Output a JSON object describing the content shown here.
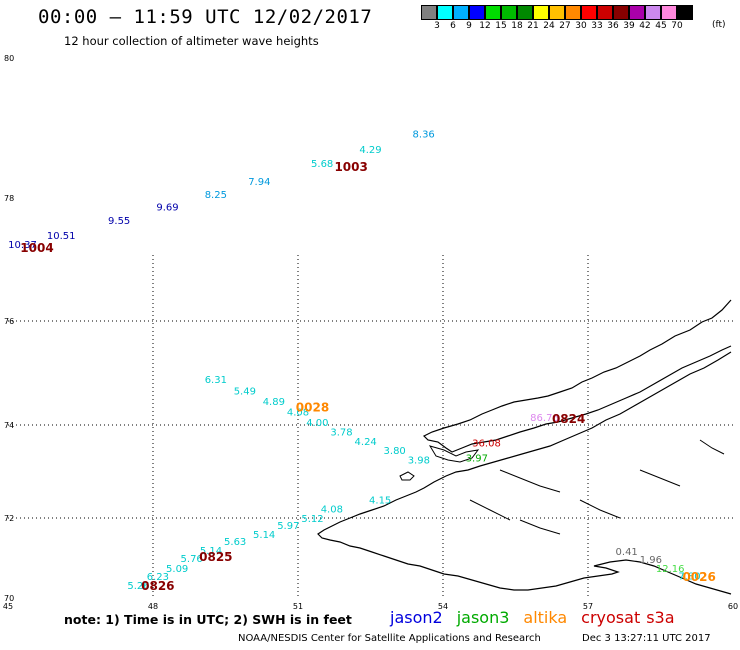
{
  "header": {
    "title": "00:00 – 11:59 UTC 12/02/2017",
    "subtitle": "12 hour collection of altimeter wave heights"
  },
  "legend": {
    "colors": [
      "#808080",
      "#00ffff",
      "#00b0ff",
      "#0000ff",
      "#00dd00",
      "#00bb00",
      "#008800",
      "#ffff00",
      "#ffc000",
      "#ff8800",
      "#ff0000",
      "#cc0000",
      "#880000",
      "#aa00aa",
      "#cc88ee",
      "#ff88dd",
      "#000000"
    ],
    "labels": [
      "3",
      "6",
      "9",
      "12",
      "15",
      "18",
      "21",
      "24",
      "27",
      "30",
      "33",
      "36",
      "39",
      "42",
      "45",
      "70"
    ],
    "unit": "(ft)"
  },
  "axes": {
    "lon_ticks": [
      "45",
      "48",
      "51",
      "54",
      "57",
      "60"
    ],
    "lat_ticks": [
      "70",
      "72",
      "74",
      "76",
      "78",
      "80"
    ]
  },
  "map": {
    "swh_points": [
      {
        "text": "10.37",
        "lon": 45.3,
        "lat": 77.25,
        "color": "#0000aa"
      },
      {
        "text": "10.51",
        "lon": 46.1,
        "lat": 77.4,
        "color": "#0000aa"
      },
      {
        "text": "9.55",
        "lon": 47.3,
        "lat": 77.64,
        "color": "#0000aa"
      },
      {
        "text": "9.69",
        "lon": 48.3,
        "lat": 77.86,
        "color": "#0000aa"
      },
      {
        "text": "8.25",
        "lon": 49.3,
        "lat": 78.06,
        "color": "#0099dd"
      },
      {
        "text": "7.94",
        "lon": 50.2,
        "lat": 78.24,
        "color": "#0099dd"
      },
      {
        "text": "5.68",
        "lon": 51.5,
        "lat": 78.5,
        "color": "#00cccc"
      },
      {
        "text": "4.29",
        "lon": 52.5,
        "lat": 78.7,
        "color": "#00cccc"
      },
      {
        "text": "8.36",
        "lon": 53.6,
        "lat": 78.92,
        "color": "#0099dd"
      },
      {
        "text": "6.31",
        "lon": 49.3,
        "lat": 74.88,
        "color": "#00cccc"
      },
      {
        "text": "5.49",
        "lon": 49.9,
        "lat": 74.66,
        "color": "#00cccc"
      },
      {
        "text": "4.89",
        "lon": 50.5,
        "lat": 74.46,
        "color": "#00cccc"
      },
      {
        "text": "4.08",
        "lon": 51.0,
        "lat": 74.26,
        "color": "#00cccc"
      },
      {
        "text": "4.00",
        "lon": 51.4,
        "lat": 74.06,
        "color": "#00cccc"
      },
      {
        "text": "3.78",
        "lon": 51.9,
        "lat": 73.86,
        "color": "#00cccc"
      },
      {
        "text": "4.24",
        "lon": 52.4,
        "lat": 73.66,
        "color": "#00cccc"
      },
      {
        "text": "3.80",
        "lon": 53.0,
        "lat": 73.46,
        "color": "#00cccc"
      },
      {
        "text": "3.98",
        "lon": 53.5,
        "lat": 73.26,
        "color": "#00cccc"
      },
      {
        "text": "4.15",
        "lon": 52.7,
        "lat": 72.4,
        "color": "#00cccc"
      },
      {
        "text": "4.08",
        "lon": 51.7,
        "lat": 72.2,
        "color": "#00cccc"
      },
      {
        "text": "5.12",
        "lon": 51.3,
        "lat": 72.0,
        "color": "#00cccc"
      },
      {
        "text": "5.97",
        "lon": 50.8,
        "lat": 71.82,
        "color": "#00cccc"
      },
      {
        "text": "5.14",
        "lon": 50.3,
        "lat": 71.6,
        "color": "#00cccc"
      },
      {
        "text": "5.63",
        "lon": 49.7,
        "lat": 71.42,
        "color": "#00cccc"
      },
      {
        "text": "5.14",
        "lon": 49.2,
        "lat": 71.2,
        "color": "#00cccc"
      },
      {
        "text": "5.76",
        "lon": 48.8,
        "lat": 71.0,
        "color": "#00cccc"
      },
      {
        "text": "5.09",
        "lon": 48.5,
        "lat": 70.75,
        "color": "#00cccc"
      },
      {
        "text": "6.23",
        "lon": 48.1,
        "lat": 70.55,
        "color": "#00cccc"
      },
      {
        "text": "5.26",
        "lon": 47.7,
        "lat": 70.32,
        "color": "#00cccc"
      },
      {
        "text": "86.76",
        "lon": 56.1,
        "lat": 74.15,
        "color": "#dd88ee"
      },
      {
        "text": "36.08",
        "lon": 54.9,
        "lat": 73.62,
        "color": "#cc0000"
      },
      {
        "text": "3.97",
        "lon": 54.7,
        "lat": 73.3,
        "color": "#00aa00"
      },
      {
        "text": "0.41",
        "lon": 57.8,
        "lat": 71.18,
        "color": "#666666"
      },
      {
        "text": "1.96",
        "lon": 58.3,
        "lat": 70.98,
        "color": "#666666"
      },
      {
        "text": "12.16",
        "lon": 58.7,
        "lat": 70.75,
        "color": "#44dd44"
      },
      {
        "text": "7.80",
        "lon": 59.1,
        "lat": 70.56,
        "color": "#00cccc"
      }
    ],
    "pass_labels": [
      {
        "text": "1004",
        "lon": 45.6,
        "lat": 77.2,
        "color": "#880000"
      },
      {
        "text": "1003",
        "lon": 52.1,
        "lat": 78.46,
        "color": "#880000"
      },
      {
        "text": "0028",
        "lon": 51.3,
        "lat": 74.36,
        "color": "#ff8800"
      },
      {
        "text": "0824",
        "lon": 56.6,
        "lat": 74.13,
        "color": "#880000"
      },
      {
        "text": "0825",
        "lon": 49.3,
        "lat": 71.05,
        "color": "#880000"
      },
      {
        "text": "0826",
        "lon": 48.1,
        "lat": 70.32,
        "color": "#880000"
      },
      {
        "text": "0026",
        "lon": 59.3,
        "lat": 70.55,
        "color": "#ff8800"
      }
    ]
  },
  "footer": {
    "note": "note: 1) Time is in UTC; 2) SWH is in feet",
    "satellites": [
      {
        "name": "jason2",
        "color": "#0000dd"
      },
      {
        "name": "jason3",
        "color": "#00aa00"
      },
      {
        "name": "altika",
        "color": "#ff8800"
      },
      {
        "name": "cryosat",
        "color": "#cc0000"
      },
      {
        "name": "s3a",
        "color": "#cc0000"
      }
    ],
    "credit": "NOAA/NESDIS Center for Satellite Applications and Research",
    "timestamp": "Dec  3 13:27:11 UTC 2017"
  }
}
